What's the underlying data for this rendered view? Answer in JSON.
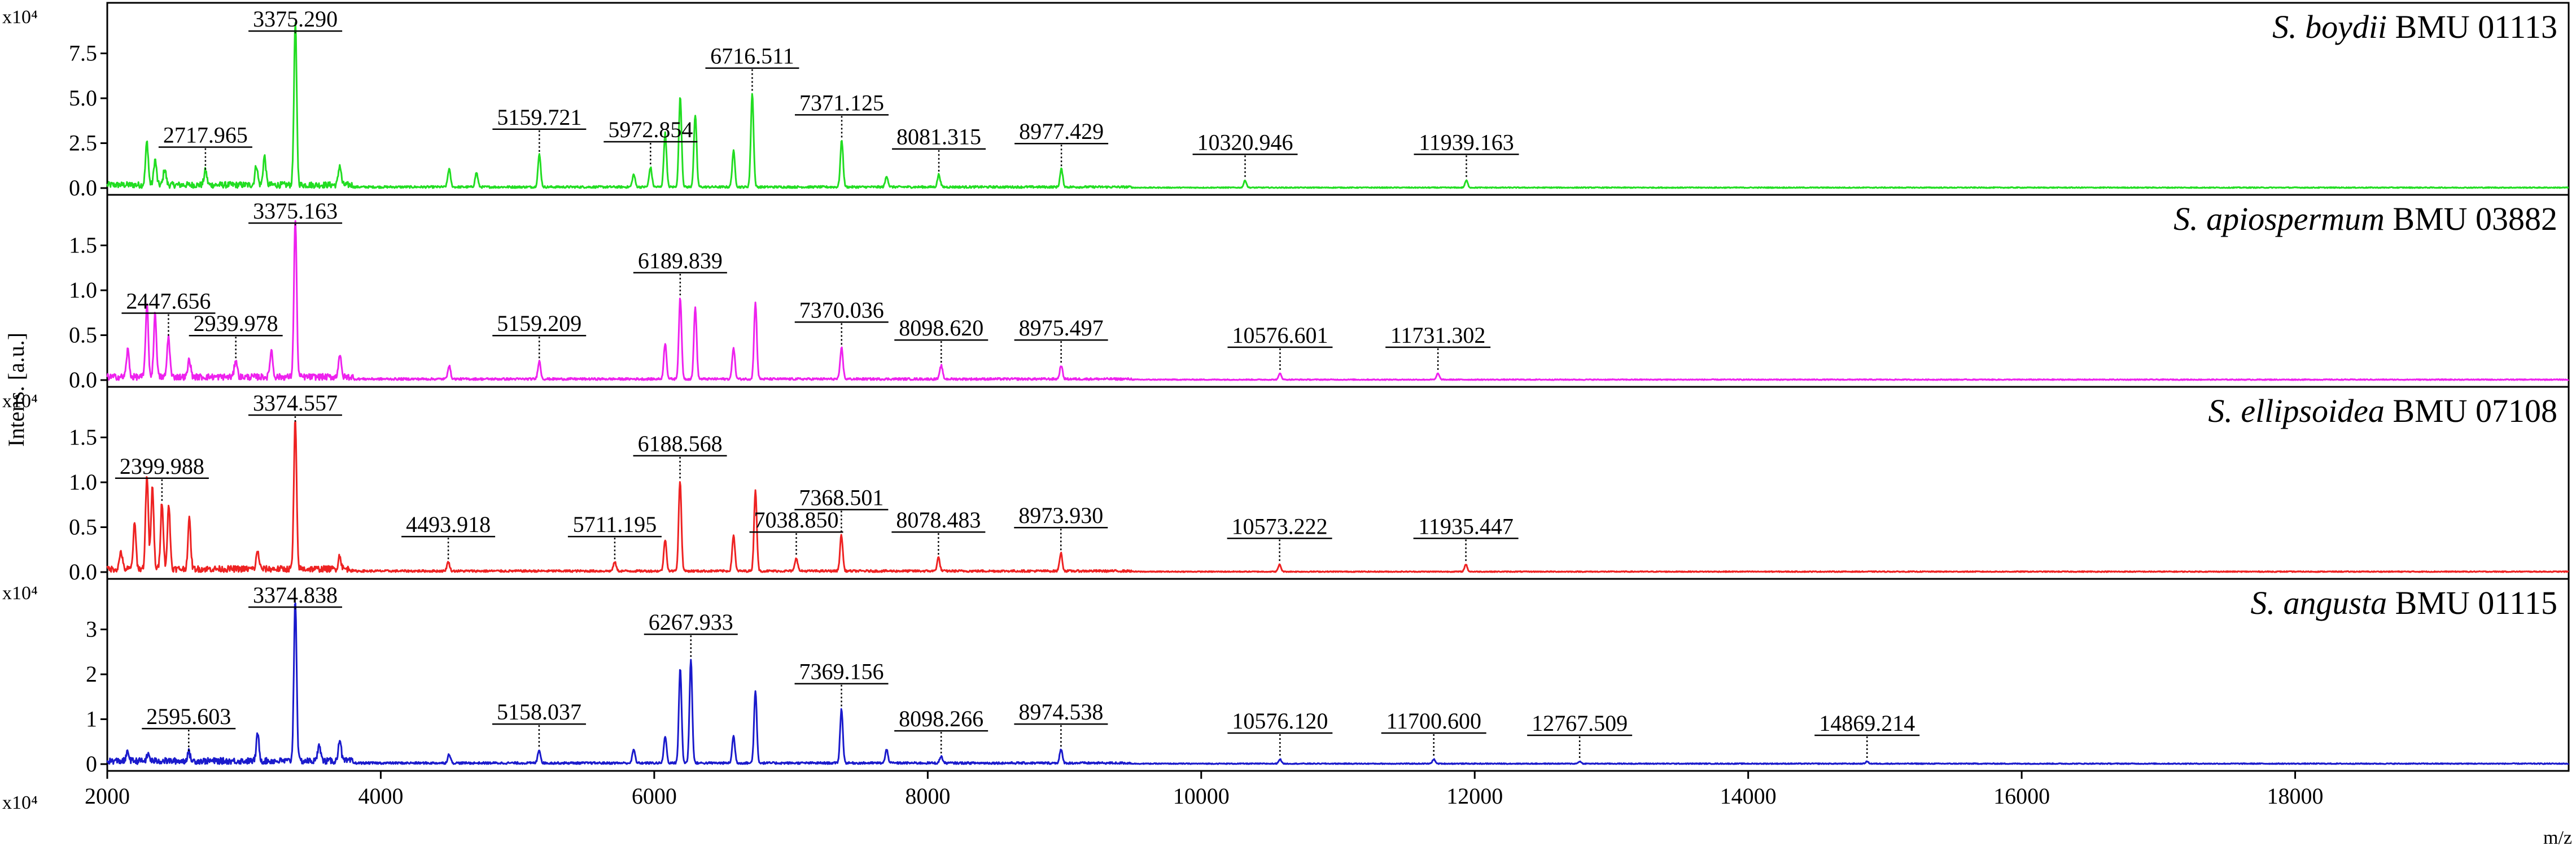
{
  "chart_data": {
    "type": "line",
    "ylabel": "Intens. [a.u.]",
    "xlabel": "m/z",
    "x_exponent_label": "x10⁴",
    "xlim": [
      2000,
      20000
    ],
    "x_ticks": [
      2000,
      4000,
      6000,
      8000,
      10000,
      12000,
      14000,
      16000,
      18000
    ],
    "grid": false,
    "panels": [
      {
        "species": "S. boydii",
        "strain": "BMU 01113",
        "color": "#22dd22",
        "exponent_label": "x10⁴",
        "ylim": [
          0,
          10
        ],
        "y_ticks": [
          "0.0",
          "2.5",
          "5.0",
          "7.5"
        ],
        "y_tick_values": [
          0,
          2.5,
          5.0,
          7.5
        ],
        "peaks": [
          {
            "mz": 2290,
            "h": 2.4
          },
          {
            "mz": 2350,
            "h": 1.4
          },
          {
            "mz": 2420,
            "h": 0.9
          },
          {
            "mz": 2717.965,
            "h": 0.8,
            "label": "2717.965"
          },
          {
            "mz": 3090,
            "h": 1.1
          },
          {
            "mz": 3150,
            "h": 1.6
          },
          {
            "mz": 3375.29,
            "h": 9.0,
            "label": "3375.290"
          },
          {
            "mz": 3700,
            "h": 1.1
          },
          {
            "mz": 4500,
            "h": 1.0
          },
          {
            "mz": 4700,
            "h": 0.8
          },
          {
            "mz": 5159.721,
            "h": 1.8,
            "label": "5159.721"
          },
          {
            "mz": 5850,
            "h": 0.7
          },
          {
            "mz": 5972.854,
            "h": 1.1,
            "label": "5972.854"
          },
          {
            "mz": 6080,
            "h": 3.0
          },
          {
            "mz": 6190,
            "h": 5.0
          },
          {
            "mz": 6300,
            "h": 4.0
          },
          {
            "mz": 6580,
            "h": 2.0
          },
          {
            "mz": 6716.511,
            "h": 5.2,
            "label": "6716.511"
          },
          {
            "mz": 7371.125,
            "h": 2.6,
            "label": "7371.125"
          },
          {
            "mz": 7700,
            "h": 0.6
          },
          {
            "mz": 8081.315,
            "h": 0.7,
            "label": "8081.315"
          },
          {
            "mz": 8977.429,
            "h": 1.0,
            "label": "8977.429"
          },
          {
            "mz": 10320.946,
            "h": 0.4,
            "label": "10320.946"
          },
          {
            "mz": 11939.163,
            "h": 0.4,
            "label": "11939.163"
          }
        ]
      },
      {
        "species": "S. apiospermum",
        "strain": "BMU 03882",
        "color": "#ee22ee",
        "exponent_label": "",
        "ylim": [
          0,
          2.0
        ],
        "y_ticks": [
          "0.0",
          "0.5",
          "1.0",
          "1.5"
        ],
        "y_tick_values": [
          0,
          0.5,
          1.0,
          1.5
        ],
        "peaks": [
          {
            "mz": 2150,
            "h": 0.3
          },
          {
            "mz": 2290,
            "h": 0.8
          },
          {
            "mz": 2350,
            "h": 0.7
          },
          {
            "mz": 2447.656,
            "h": 0.45,
            "label": "2447.656"
          },
          {
            "mz": 2600,
            "h": 0.2
          },
          {
            "mz": 2939.978,
            "h": 0.2,
            "label": "2939.978"
          },
          {
            "mz": 3200,
            "h": 0.3
          },
          {
            "mz": 3375.163,
            "h": 1.75,
            "label": "3375.163"
          },
          {
            "mz": 3700,
            "h": 0.25
          },
          {
            "mz": 4500,
            "h": 0.15
          },
          {
            "mz": 5159.209,
            "h": 0.2,
            "label": "5159.209"
          },
          {
            "mz": 6080,
            "h": 0.4
          },
          {
            "mz": 6189.839,
            "h": 0.9,
            "label": "6189.839"
          },
          {
            "mz": 6300,
            "h": 0.8
          },
          {
            "mz": 6580,
            "h": 0.35
          },
          {
            "mz": 6740,
            "h": 0.85
          },
          {
            "mz": 7370.036,
            "h": 0.35,
            "label": "7370.036"
          },
          {
            "mz": 8098.62,
            "h": 0.15,
            "label": "8098.620"
          },
          {
            "mz": 8975.497,
            "h": 0.15,
            "label": "8975.497"
          },
          {
            "mz": 10576.601,
            "h": 0.07,
            "label": "10576.601"
          },
          {
            "mz": 11731.302,
            "h": 0.07,
            "label": "11731.302"
          }
        ]
      },
      {
        "species": "S. ellipsoidea",
        "strain": "BMU 07108",
        "color": "#ee2222",
        "exponent_label": "x10⁴",
        "ylim": [
          0,
          2.0
        ],
        "y_ticks": [
          "0.0",
          "0.5",
          "1.0",
          "1.5"
        ],
        "y_tick_values": [
          0,
          0.5,
          1.0,
          1.5
        ],
        "peaks": [
          {
            "mz": 2100,
            "h": 0.2
          },
          {
            "mz": 2200,
            "h": 0.5
          },
          {
            "mz": 2290,
            "h": 1.05
          },
          {
            "mz": 2330,
            "h": 0.9
          },
          {
            "mz": 2399.988,
            "h": 0.75,
            "label": "2399.988"
          },
          {
            "mz": 2450,
            "h": 0.7
          },
          {
            "mz": 2600,
            "h": 0.55
          },
          {
            "mz": 3100,
            "h": 0.2
          },
          {
            "mz": 3374.557,
            "h": 1.65,
            "label": "3374.557"
          },
          {
            "mz": 3700,
            "h": 0.15
          },
          {
            "mz": 4493.918,
            "h": 0.1,
            "label": "4493.918"
          },
          {
            "mz": 5711.195,
            "h": 0.1,
            "label": "5711.195"
          },
          {
            "mz": 6080,
            "h": 0.35
          },
          {
            "mz": 6188.568,
            "h": 1.0,
            "label": "6188.568"
          },
          {
            "mz": 6580,
            "h": 0.4
          },
          {
            "mz": 6740,
            "h": 0.9
          },
          {
            "mz": 7038.85,
            "h": 0.15,
            "label": "7038.850"
          },
          {
            "mz": 7368.501,
            "h": 0.4,
            "label": "7368.501"
          },
          {
            "mz": 8078.483,
            "h": 0.15,
            "label": "8078.483"
          },
          {
            "mz": 8973.93,
            "h": 0.2,
            "label": "8973.930"
          },
          {
            "mz": 10573.222,
            "h": 0.08,
            "label": "10573.222"
          },
          {
            "mz": 11935.447,
            "h": 0.08,
            "label": "11935.447"
          }
        ]
      },
      {
        "species": "S. angusta",
        "strain": "BMU 01115",
        "color": "#1a1acc",
        "exponent_label": "x10⁴",
        "ylim": [
          0,
          4.0
        ],
        "y_ticks": [
          "0",
          "1",
          "2",
          "3"
        ],
        "y_tick_values": [
          0,
          1,
          2,
          3
        ],
        "peaks": [
          {
            "mz": 2150,
            "h": 0.2
          },
          {
            "mz": 2300,
            "h": 0.15
          },
          {
            "mz": 2595.603,
            "h": 0.2,
            "label": "2595.603"
          },
          {
            "mz": 3100,
            "h": 0.6
          },
          {
            "mz": 3374.838,
            "h": 3.6,
            "label": "3374.838"
          },
          {
            "mz": 3550,
            "h": 0.4
          },
          {
            "mz": 3700,
            "h": 0.5
          },
          {
            "mz": 4500,
            "h": 0.2
          },
          {
            "mz": 5158.037,
            "h": 0.3,
            "label": "5158.037"
          },
          {
            "mz": 5850,
            "h": 0.3
          },
          {
            "mz": 6080,
            "h": 0.6
          },
          {
            "mz": 6190,
            "h": 2.1
          },
          {
            "mz": 6267.933,
            "h": 2.3,
            "label": "6267.933"
          },
          {
            "mz": 6580,
            "h": 0.6
          },
          {
            "mz": 6740,
            "h": 1.6
          },
          {
            "mz": 7369.156,
            "h": 1.2,
            "label": "7369.156"
          },
          {
            "mz": 7700,
            "h": 0.3
          },
          {
            "mz": 8098.266,
            "h": 0.15,
            "label": "8098.266"
          },
          {
            "mz": 8974.538,
            "h": 0.3,
            "label": "8974.538"
          },
          {
            "mz": 10576.12,
            "h": 0.1,
            "label": "10576.120"
          },
          {
            "mz": 11700.6,
            "h": 0.1,
            "label": "11700.600"
          },
          {
            "mz": 12767.509,
            "h": 0.05,
            "label": "12767.509"
          },
          {
            "mz": 14869.214,
            "h": 0.05,
            "label": "14869.214"
          }
        ]
      }
    ]
  }
}
